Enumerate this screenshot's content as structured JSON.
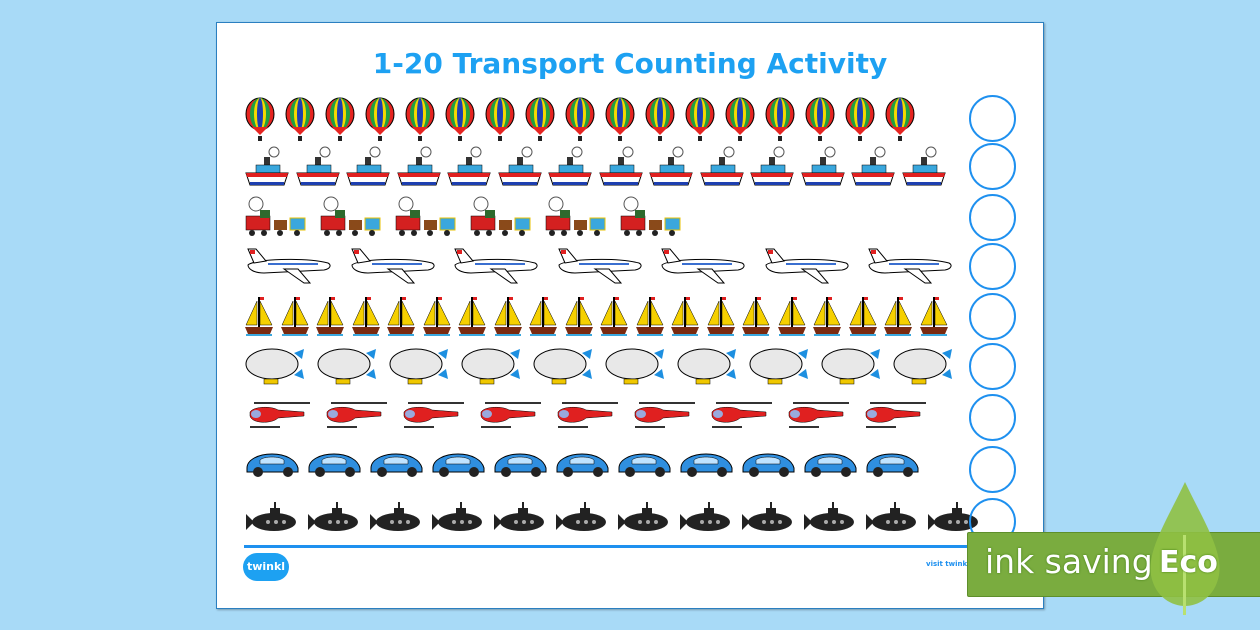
{
  "title": "1-20 Transport Counting Activity",
  "rows": [
    {
      "vehicle": "hot-air-balloon",
      "count": 17
    },
    {
      "vehicle": "steamship",
      "count": 14
    },
    {
      "vehicle": "steam-train",
      "count": 6
    },
    {
      "vehicle": "airplane",
      "count": 7
    },
    {
      "vehicle": "sailboat",
      "count": 20
    },
    {
      "vehicle": "blimp",
      "count": 10
    },
    {
      "vehicle": "helicopter",
      "count": 9
    },
    {
      "vehicle": "car",
      "count": 11
    },
    {
      "vehicle": "submarine",
      "count": 12
    }
  ],
  "footer": {
    "logo": "twinkl",
    "visit": "visit twinkl..."
  },
  "badge": {
    "text": "ink saving",
    "eco": "Eco"
  },
  "colors": {
    "accent": "#1e90ef",
    "title": "#1da1f2",
    "eco_green": "#7aac3f",
    "background": "#a8daf7"
  }
}
